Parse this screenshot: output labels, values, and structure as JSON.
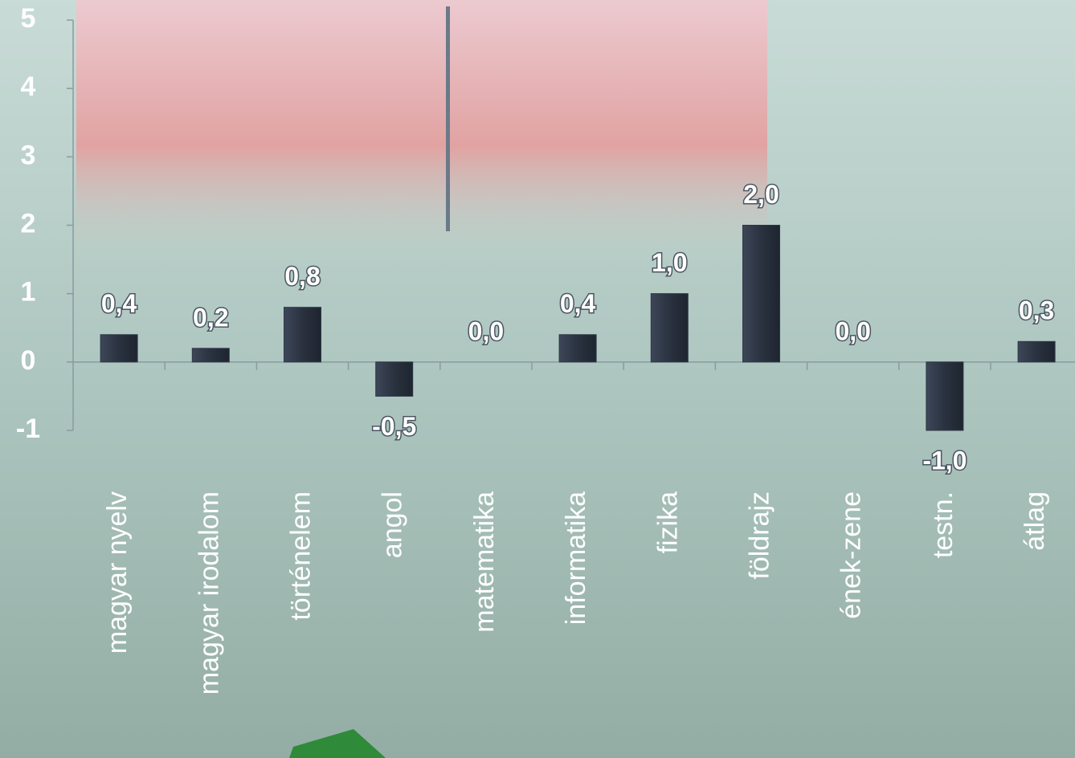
{
  "chart_data": {
    "type": "bar",
    "categories": [
      "magyar nyelv",
      "magyar irodalom",
      "történelem",
      "angol",
      "matematika",
      "informatika",
      "fizika",
      "földrajz",
      "ének-zene",
      "testn.",
      "átlag"
    ],
    "values": [
      0.4,
      0.2,
      0.8,
      -0.5,
      0,
      0.4,
      1,
      2,
      0,
      -1,
      0.3
    ],
    "value_labels": [
      "0,4",
      "0,2",
      "0,8",
      "-0,5",
      "0,0",
      "0,4",
      "1,0",
      "2,0",
      "0,0",
      "-1,0",
      "0,3"
    ],
    "color": "#2f3746",
    "ylim": [
      -1,
      5
    ],
    "yticks": [
      -1,
      0,
      1,
      2,
      3,
      4,
      5
    ]
  }
}
